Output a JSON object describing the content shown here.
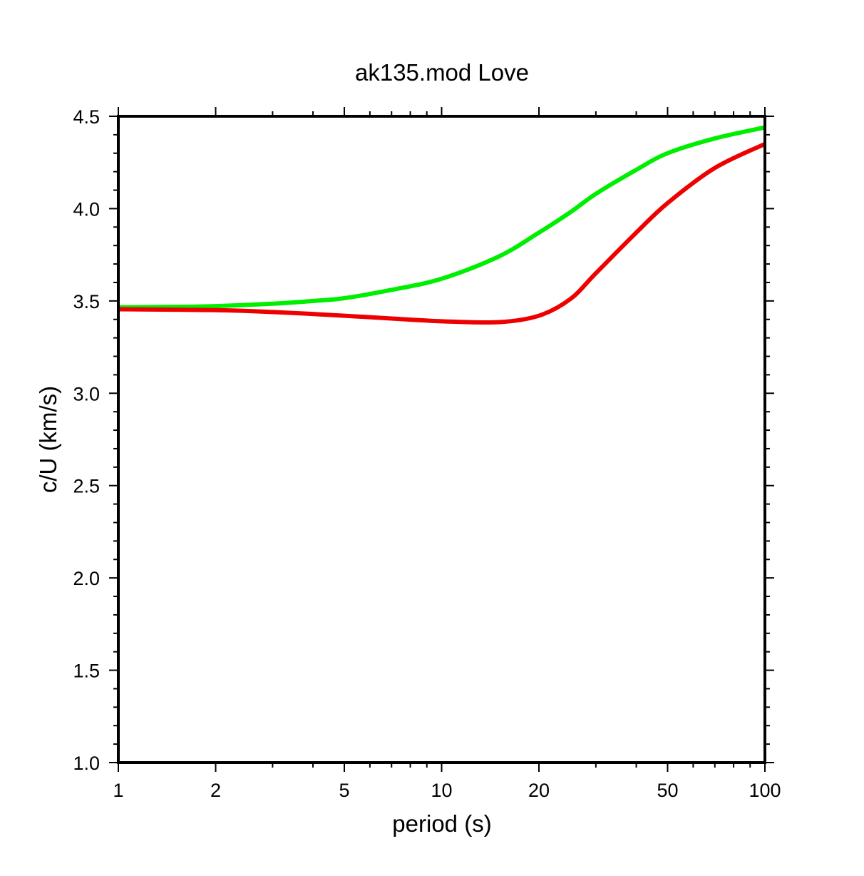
{
  "chart_data": {
    "type": "line",
    "title": "ak135.mod Love",
    "xlabel": "period (s)",
    "ylabel": "c/U (km/s)",
    "xscale": "log",
    "xlim": [
      1,
      100
    ],
    "ylim": [
      1.0,
      4.5
    ],
    "x_ticks": [
      "1",
      "2",
      "5",
      "10",
      "20",
      "50",
      "100"
    ],
    "y_ticks": [
      "1.0",
      "1.5",
      "2.0",
      "2.5",
      "3.0",
      "3.5",
      "4.0",
      "4.5"
    ],
    "grid": false,
    "legend": "none",
    "series": [
      {
        "color": "#00ee00",
        "x": [
          1,
          1.5,
          2,
          3,
          4,
          5,
          7,
          10,
          15,
          20,
          25,
          30,
          40,
          50,
          70,
          100
        ],
        "y": [
          3.465,
          3.468,
          3.472,
          3.485,
          3.5,
          3.515,
          3.56,
          3.62,
          3.74,
          3.87,
          3.98,
          4.08,
          4.21,
          4.3,
          4.38,
          4.44
        ]
      },
      {
        "color": "#ee0000",
        "x": [
          1,
          2,
          3,
          5,
          7,
          10,
          15,
          20,
          25,
          30,
          40,
          50,
          70,
          100
        ],
        "y": [
          3.455,
          3.45,
          3.44,
          3.42,
          3.405,
          3.39,
          3.385,
          3.42,
          3.51,
          3.65,
          3.87,
          4.03,
          4.22,
          4.35
        ]
      }
    ]
  }
}
